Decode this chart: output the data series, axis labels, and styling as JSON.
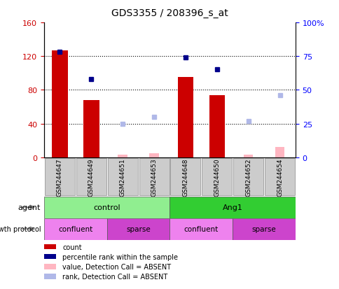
{
  "title": "GDS3355 / 208396_s_at",
  "samples": [
    "GSM244647",
    "GSM244649",
    "GSM244651",
    "GSM244653",
    "GSM244648",
    "GSM244650",
    "GSM244652",
    "GSM244654"
  ],
  "count_values": [
    127,
    68,
    null,
    null,
    95,
    74,
    null,
    null
  ],
  "count_absent_values": [
    null,
    null,
    3,
    5,
    null,
    null,
    3,
    12
  ],
  "rank_values": [
    78,
    58,
    null,
    null,
    74,
    65,
    null,
    null
  ],
  "rank_absent_values": [
    null,
    null,
    25,
    30,
    null,
    null,
    27,
    46
  ],
  "ylim_left": [
    0,
    160
  ],
  "ylim_right": [
    0,
    100
  ],
  "yticks_left": [
    0,
    40,
    80,
    120,
    160
  ],
  "ytick_labels_left": [
    "0",
    "40",
    "80",
    "120",
    "160"
  ],
  "yticks_right": [
    0,
    25,
    50,
    75,
    100
  ],
  "ytick_labels_right": [
    "0",
    "25",
    "50",
    "75",
    "100%"
  ],
  "agent_groups": [
    {
      "label": "control",
      "start": 0,
      "end": 4,
      "color": "#90ee90"
    },
    {
      "label": "Ang1",
      "start": 4,
      "end": 8,
      "color": "#32cd32"
    }
  ],
  "growth_groups": [
    {
      "label": "confluent",
      "start": 0,
      "end": 2,
      "color": "#ee82ee"
    },
    {
      "label": "sparse",
      "start": 2,
      "end": 4,
      "color": "#cc44cc"
    },
    {
      "label": "confluent",
      "start": 4,
      "end": 6,
      "color": "#ee82ee"
    },
    {
      "label": "sparse",
      "start": 6,
      "end": 8,
      "color": "#cc44cc"
    }
  ],
  "bar_color": "#cc0000",
  "bar_absent_color": "#ffb6c1",
  "rank_color": "#00008b",
  "rank_absent_color": "#b0b8e8",
  "bar_width": 0.5,
  "absent_bar_width": 0.3,
  "legend_items": [
    {
      "label": "count",
      "color": "#cc0000"
    },
    {
      "label": "percentile rank within the sample",
      "color": "#00008b"
    },
    {
      "label": "value, Detection Call = ABSENT",
      "color": "#ffb6c1"
    },
    {
      "label": "rank, Detection Call = ABSENT",
      "color": "#b0b8e8"
    }
  ]
}
